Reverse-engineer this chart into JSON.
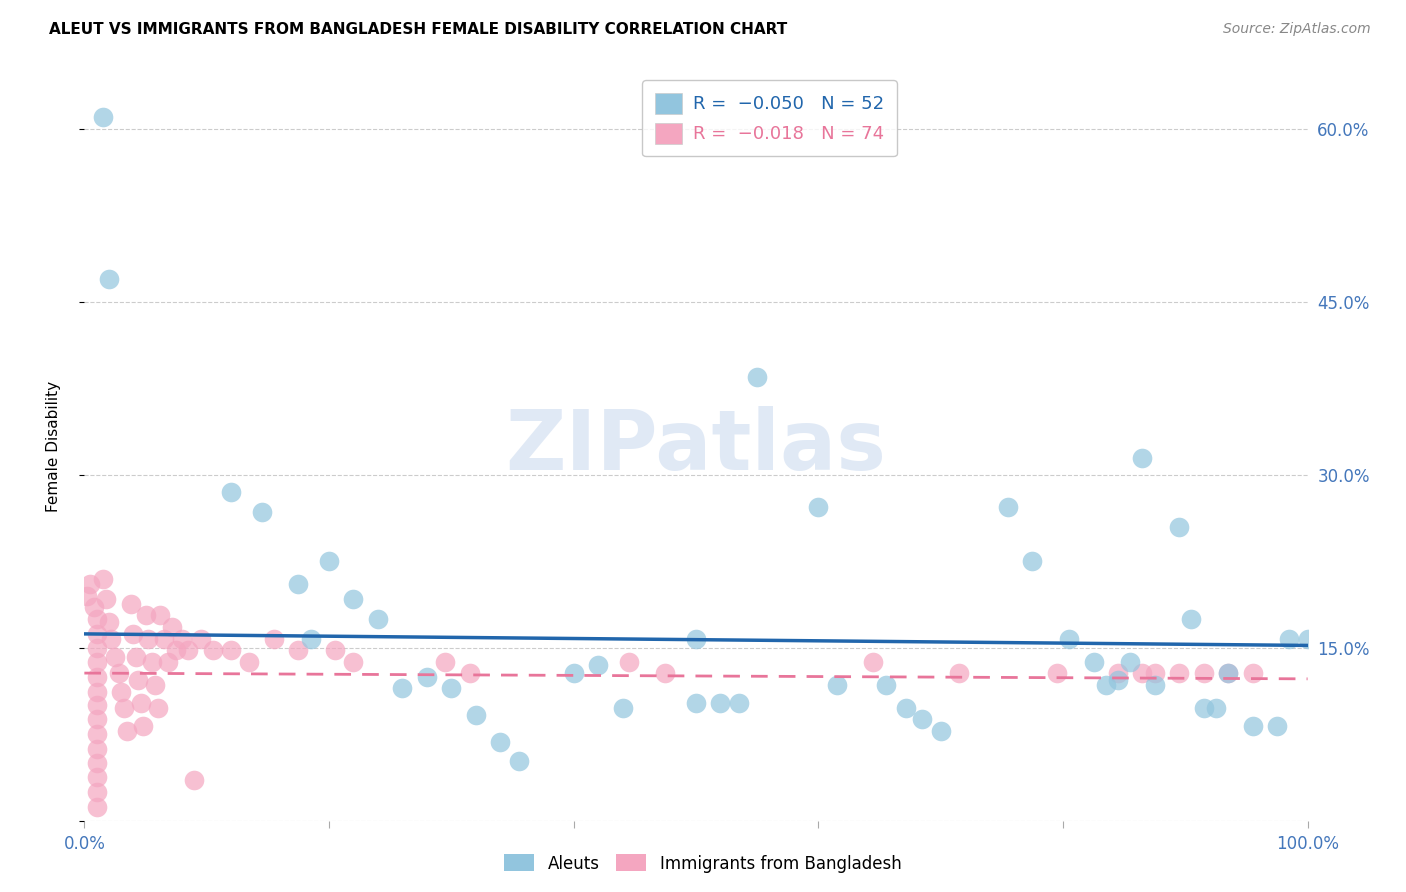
{
  "title": "ALEUT VS IMMIGRANTS FROM BANGLADESH FEMALE DISABILITY CORRELATION CHART",
  "source": "Source: ZipAtlas.com",
  "ylabel": "Female Disability",
  "y_ticks": [
    0.0,
    0.15,
    0.3,
    0.45,
    0.6
  ],
  "y_tick_labels_right": [
    "",
    "15.0%",
    "30.0%",
    "45.0%",
    "60.0%"
  ],
  "ylim": [
    0.0,
    0.65
  ],
  "xlim": [
    0.0,
    1.0
  ],
  "legend_blue_label": "R =  −0.050   N = 52",
  "legend_pink_label": "R =  −0.018   N = 74",
  "blue_color": "#92c5de",
  "pink_color": "#f4a6c0",
  "blue_line_color": "#2166ac",
  "pink_line_color": "#e8759a",
  "grid_color": "#cccccc",
  "tick_color": "#4477bb",
  "watermark": "ZIPatlas",
  "blue_scatter": [
    [
      0.015,
      0.61
    ],
    [
      0.02,
      0.47
    ],
    [
      0.12,
      0.285
    ],
    [
      0.145,
      0.268
    ],
    [
      0.175,
      0.205
    ],
    [
      0.185,
      0.158
    ],
    [
      0.2,
      0.225
    ],
    [
      0.22,
      0.192
    ],
    [
      0.24,
      0.175
    ],
    [
      0.26,
      0.115
    ],
    [
      0.28,
      0.125
    ],
    [
      0.3,
      0.115
    ],
    [
      0.32,
      0.092
    ],
    [
      0.34,
      0.068
    ],
    [
      0.355,
      0.052
    ],
    [
      0.4,
      0.128
    ],
    [
      0.42,
      0.135
    ],
    [
      0.44,
      0.098
    ],
    [
      0.5,
      0.158
    ],
    [
      0.5,
      0.102
    ],
    [
      0.52,
      0.102
    ],
    [
      0.535,
      0.102
    ],
    [
      0.55,
      0.385
    ],
    [
      0.6,
      0.272
    ],
    [
      0.615,
      0.118
    ],
    [
      0.655,
      0.118
    ],
    [
      0.672,
      0.098
    ],
    [
      0.685,
      0.088
    ],
    [
      0.7,
      0.078
    ],
    [
      0.755,
      0.272
    ],
    [
      0.775,
      0.225
    ],
    [
      0.805,
      0.158
    ],
    [
      0.825,
      0.138
    ],
    [
      0.835,
      0.118
    ],
    [
      0.845,
      0.122
    ],
    [
      0.855,
      0.138
    ],
    [
      0.865,
      0.315
    ],
    [
      0.875,
      0.118
    ],
    [
      0.895,
      0.255
    ],
    [
      0.905,
      0.175
    ],
    [
      0.915,
      0.098
    ],
    [
      0.925,
      0.098
    ],
    [
      0.935,
      0.128
    ],
    [
      0.955,
      0.082
    ],
    [
      0.975,
      0.082
    ],
    [
      0.985,
      0.158
    ],
    [
      1.0,
      0.158
    ]
  ],
  "pink_scatter": [
    [
      0.002,
      0.195
    ],
    [
      0.005,
      0.205
    ],
    [
      0.008,
      0.185
    ],
    [
      0.01,
      0.175
    ],
    [
      0.01,
      0.162
    ],
    [
      0.01,
      0.15
    ],
    [
      0.01,
      0.138
    ],
    [
      0.01,
      0.125
    ],
    [
      0.01,
      0.112
    ],
    [
      0.01,
      0.1
    ],
    [
      0.01,
      0.088
    ],
    [
      0.01,
      0.075
    ],
    [
      0.01,
      0.062
    ],
    [
      0.01,
      0.05
    ],
    [
      0.01,
      0.038
    ],
    [
      0.01,
      0.025
    ],
    [
      0.01,
      0.012
    ],
    [
      0.015,
      0.21
    ],
    [
      0.018,
      0.192
    ],
    [
      0.02,
      0.172
    ],
    [
      0.022,
      0.158
    ],
    [
      0.025,
      0.142
    ],
    [
      0.028,
      0.128
    ],
    [
      0.03,
      0.112
    ],
    [
      0.032,
      0.098
    ],
    [
      0.035,
      0.078
    ],
    [
      0.038,
      0.188
    ],
    [
      0.04,
      0.162
    ],
    [
      0.042,
      0.142
    ],
    [
      0.044,
      0.122
    ],
    [
      0.046,
      0.102
    ],
    [
      0.048,
      0.082
    ],
    [
      0.05,
      0.178
    ],
    [
      0.052,
      0.158
    ],
    [
      0.055,
      0.138
    ],
    [
      0.058,
      0.118
    ],
    [
      0.06,
      0.098
    ],
    [
      0.062,
      0.178
    ],
    [
      0.065,
      0.158
    ],
    [
      0.068,
      0.138
    ],
    [
      0.072,
      0.168
    ],
    [
      0.075,
      0.148
    ],
    [
      0.08,
      0.158
    ],
    [
      0.085,
      0.148
    ],
    [
      0.09,
      0.035
    ],
    [
      0.095,
      0.158
    ],
    [
      0.105,
      0.148
    ],
    [
      0.12,
      0.148
    ],
    [
      0.135,
      0.138
    ],
    [
      0.155,
      0.158
    ],
    [
      0.175,
      0.148
    ],
    [
      0.205,
      0.148
    ],
    [
      0.22,
      0.138
    ],
    [
      0.295,
      0.138
    ],
    [
      0.315,
      0.128
    ],
    [
      0.445,
      0.138
    ],
    [
      0.475,
      0.128
    ],
    [
      0.645,
      0.138
    ],
    [
      0.715,
      0.128
    ],
    [
      0.795,
      0.128
    ],
    [
      0.845,
      0.128
    ],
    [
      0.865,
      0.128
    ],
    [
      0.875,
      0.128
    ],
    [
      0.895,
      0.128
    ],
    [
      0.915,
      0.128
    ],
    [
      0.935,
      0.128
    ],
    [
      0.955,
      0.128
    ]
  ],
  "blue_trendline_x": [
    0.0,
    1.0
  ],
  "blue_trendline_y": [
    0.162,
    0.152
  ],
  "pink_trendline_x": [
    0.0,
    1.0
  ],
  "pink_trendline_y": [
    0.128,
    0.123
  ]
}
